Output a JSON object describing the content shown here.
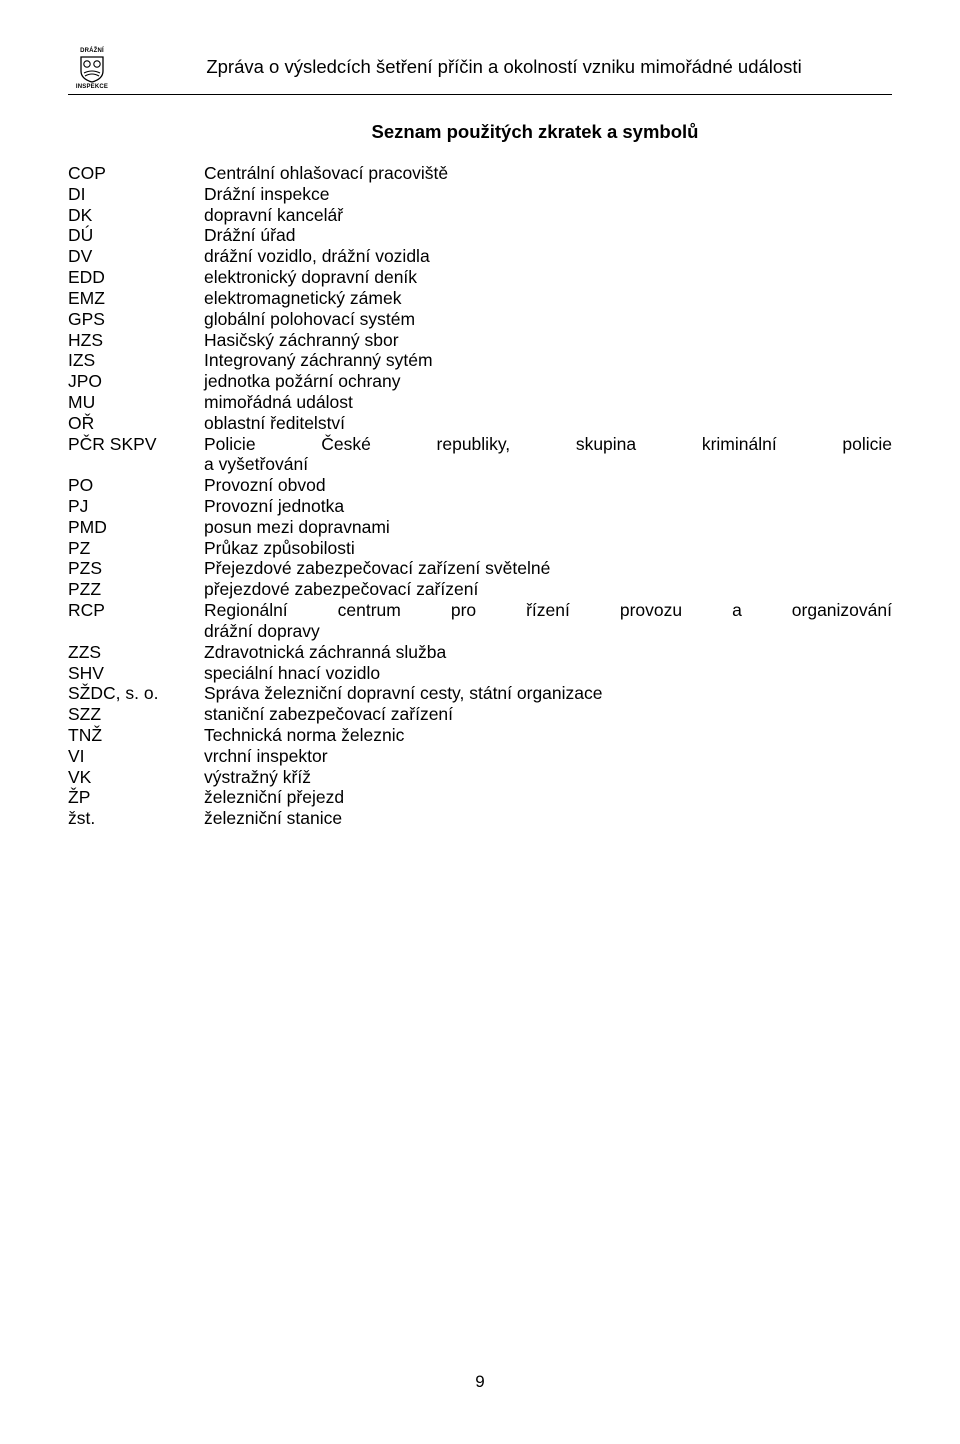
{
  "header": {
    "logo_top": "DRÁŽNÍ",
    "logo_bottom": "INSPEKCE",
    "title": "Zpráva o výsledcích šetření příčin a okolností vzniku mimořádné události"
  },
  "section_title": "Seznam použitých zkratek a symbolů",
  "abbreviations": [
    {
      "code": "COP",
      "def": "Centrální ohlašovací pracoviště"
    },
    {
      "code": "DI",
      "def": "Drážní inspekce"
    },
    {
      "code": "DK",
      "def": "dopravní kancelář"
    },
    {
      "code": "DÚ",
      "def": "Drážní úřad"
    },
    {
      "code": "DV",
      "def": "drážní vozidlo, drážní vozidla"
    },
    {
      "code": "EDD",
      "def": "elektronický dopravní deník"
    },
    {
      "code": "EMZ",
      "def": "elektromagnetický zámek"
    },
    {
      "code": "GPS",
      "def": "globální polohovací systém"
    },
    {
      "code": "HZS",
      "def": "Hasičský záchranný sbor"
    },
    {
      "code": "IZS",
      "def": "Integrovaný záchranný sytém"
    },
    {
      "code": "JPO",
      "def": "jednotka požární ochrany"
    },
    {
      "code": "MU",
      "def": "mimořádná událost"
    },
    {
      "code": "OŘ",
      "def": "oblastní ředitelství"
    },
    {
      "code": "PČR SKPV",
      "def": "Policie České republiky, skupina kriminální policie a vyšetřování",
      "multiline": true,
      "line1": "Policie České republiky, skupina kriminální policie",
      "line2": "a vyšetřování"
    },
    {
      "code": "PO",
      "def": "Provozní obvod"
    },
    {
      "code": "PJ",
      "def": "Provozní jednotka"
    },
    {
      "code": "PMD",
      "def": "posun mezi dopravnami"
    },
    {
      "code": "PZ",
      "def": "Průkaz způsobilosti"
    },
    {
      "code": "PZS",
      "def": "Přejezdové zabezpečovací zařízení světelné"
    },
    {
      "code": "PZZ",
      "def": "přejezdové zabezpečovací zařízení"
    },
    {
      "code": "RCP",
      "def": "Regionální centrum pro řízení provozu a organizování drážní dopravy",
      "multiline": true,
      "line1": "Regionální centrum pro řízení provozu a organizování",
      "line2": "drážní dopravy"
    },
    {
      "code": "ZZS",
      "def": "Zdravotnická záchranná služba"
    },
    {
      "code": "SHV",
      "def": "speciální hnací vozidlo"
    },
    {
      "code": "SŽDC, s. o.",
      "def": "Správa železniční dopravní cesty, státní organizace"
    },
    {
      "code": "SZZ",
      "def": "staniční zabezpečovací zařízení"
    },
    {
      "code": "TNŽ",
      "def": "Technická norma železnic"
    },
    {
      "code": "VI",
      "def": "vrchní inspektor"
    },
    {
      "code": "VK",
      "def": "výstražný kříž"
    },
    {
      "code": "ŽP",
      "def": "železniční přejezd"
    },
    {
      "code": "žst.",
      "def": "železniční stanice"
    }
  ],
  "page_number": "9",
  "colors": {
    "background": "#ffffff",
    "text": "#000000",
    "border": "#000000"
  },
  "typography": {
    "body_fontsize": 17.5,
    "title_fontsize": 18.5,
    "header_fontsize": 18.5
  }
}
